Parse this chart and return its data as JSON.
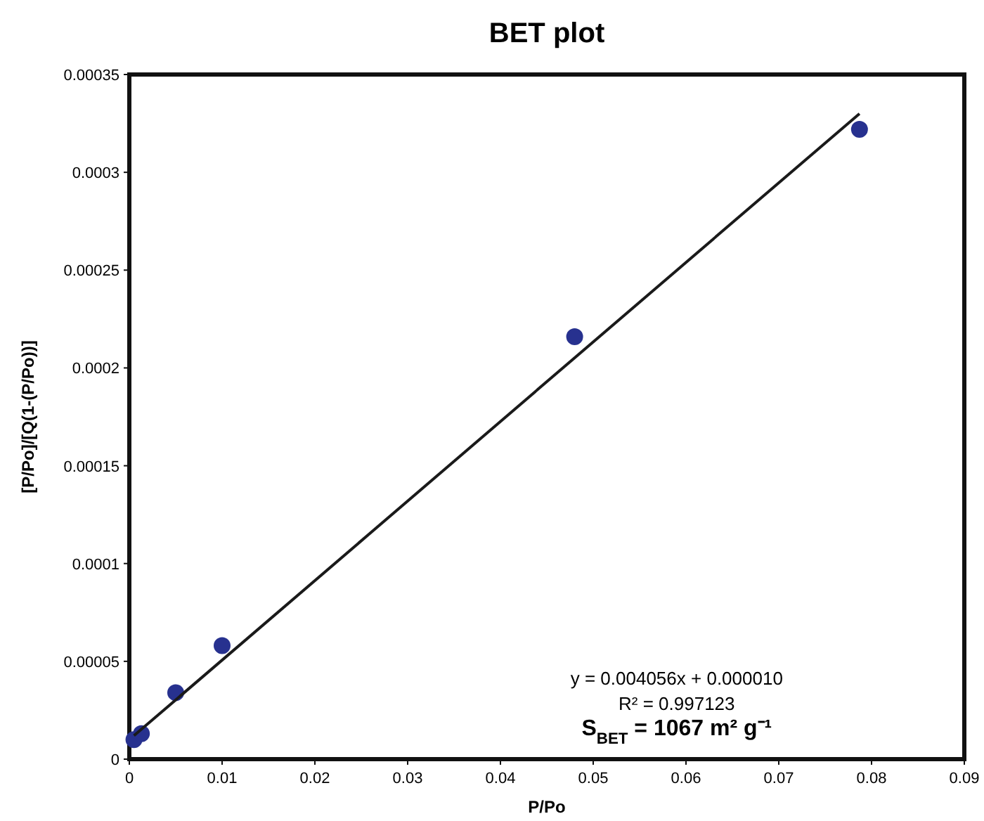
{
  "chart_data": {
    "type": "scatter",
    "title": "BET plot",
    "xlabel": "P/Po",
    "ylabel": "[P/Po]/[Q(1-(P/Po))]",
    "xlim": [
      0,
      0.09
    ],
    "ylim": [
      0,
      0.00035
    ],
    "xticks": [
      0,
      0.01,
      0.02,
      0.03,
      0.04,
      0.05,
      0.06,
      0.07,
      0.08,
      0.09
    ],
    "yticks": [
      0,
      {
        "value": 5e-05,
        "label": "0.00005"
      },
      0.0001,
      0.00015,
      0.0002,
      0.00025,
      0.0003,
      0.00035
    ],
    "grid": false,
    "marker": "circle",
    "series": [
      {
        "color": "#27318f",
        "x": [
          0.0005,
          0.0013,
          0.005,
          0.01,
          0.048,
          0.0787
        ],
        "values": [
          1e-05,
          1.3e-05,
          3.4e-05,
          5.8e-05,
          0.000216,
          0.000322
        ]
      },
      {
        "type": "line",
        "color": "#1a1a1a",
        "x": [
          0.0005,
          0.0787
        ],
        "values": [
          1.2e-05,
          0.00033
        ],
        "marker": "none",
        "line_style": "solid"
      }
    ],
    "annotations": [
      "y = 0.004056x + 0.000010",
      "R² = 0.997123",
      "S$_{BET}$ = 1067 m² g⁻¹"
    ]
  }
}
